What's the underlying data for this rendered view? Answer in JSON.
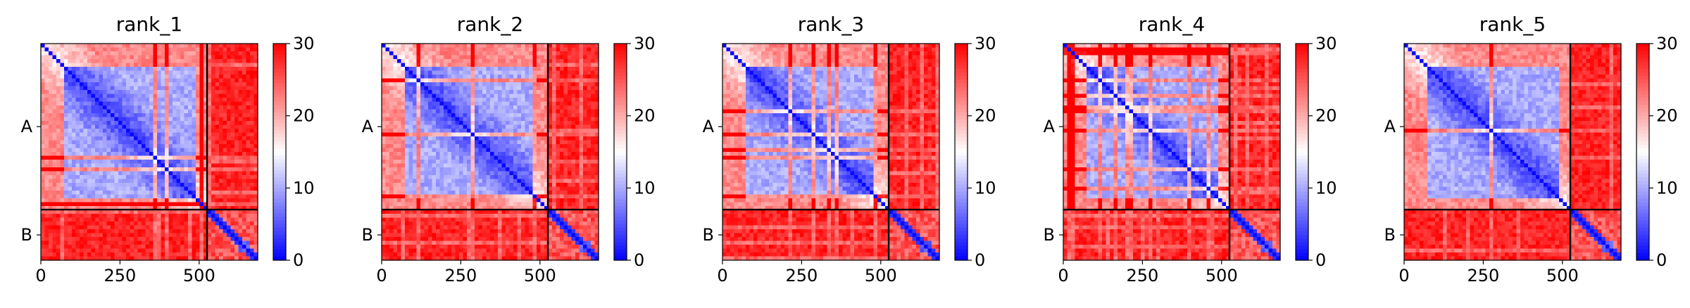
{
  "chart_data": [
    {
      "type": "heatmap",
      "title": "rank_1",
      "xticks": [
        0,
        250,
        500
      ],
      "chain_labels": [
        "A",
        "B"
      ],
      "chain_lengths": [
        525,
        160
      ],
      "colorbar": {
        "ticks": [
          0,
          10,
          20,
          30
        ],
        "range": [
          0,
          30
        ],
        "colormap": "bwr"
      },
      "pattern_seed": 11
    },
    {
      "type": "heatmap",
      "title": "rank_2",
      "xticks": [
        0,
        250,
        500
      ],
      "chain_labels": [
        "A",
        "B"
      ],
      "chain_lengths": [
        525,
        160
      ],
      "colorbar": {
        "ticks": [
          0,
          10,
          20,
          30
        ],
        "range": [
          0,
          30
        ],
        "colormap": "bwr"
      },
      "pattern_seed": 23
    },
    {
      "type": "heatmap",
      "title": "rank_3",
      "xticks": [
        0,
        250,
        500
      ],
      "chain_labels": [
        "A",
        "B"
      ],
      "chain_lengths": [
        525,
        160
      ],
      "colorbar": {
        "ticks": [
          0,
          10,
          20,
          30
        ],
        "range": [
          0,
          30
        ],
        "colormap": "bwr"
      },
      "pattern_seed": 37
    },
    {
      "type": "heatmap",
      "title": "rank_4",
      "xticks": [
        0,
        250,
        500
      ],
      "chain_labels": [
        "A",
        "B"
      ],
      "chain_lengths": [
        525,
        160
      ],
      "colorbar": {
        "ticks": [
          0,
          10,
          20,
          30
        ],
        "range": [
          0,
          30
        ],
        "colormap": "bwr"
      },
      "pattern_seed": 41
    },
    {
      "type": "heatmap",
      "title": "rank_5",
      "xticks": [
        0,
        250,
        500
      ],
      "chain_labels": [
        "A",
        "B"
      ],
      "chain_lengths": [
        525,
        160
      ],
      "colorbar": {
        "ticks": [
          0,
          10,
          20,
          30
        ],
        "range": [
          0,
          30
        ],
        "colormap": "bwr"
      },
      "pattern_seed": 53
    }
  ]
}
